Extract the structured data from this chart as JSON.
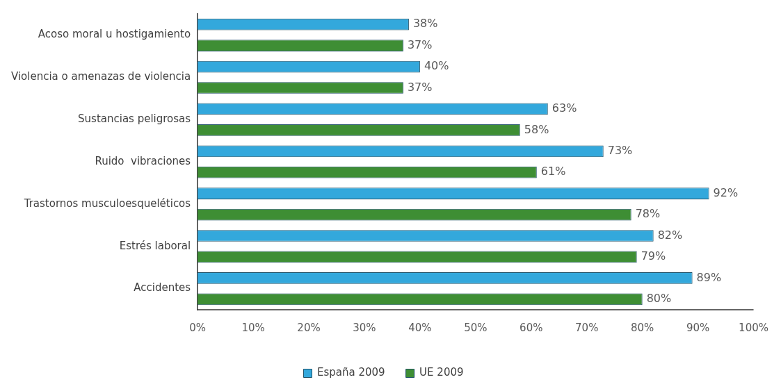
{
  "chart_data": {
    "type": "bar",
    "orientation": "horizontal",
    "categories": [
      "Acoso moral u hostigamiento",
      "Violencia o amenazas de violencia",
      "Sustancias peligrosas",
      "Ruido  vibraciones",
      "Trastornos musculoesqueléticos",
      "Estrés laboral",
      "Accidentes"
    ],
    "series": [
      {
        "name": "España 2009",
        "color": "#33a8dc",
        "values": [
          38,
          40,
          63,
          73,
          92,
          82,
          89
        ],
        "value_labels": [
          "38%",
          "40%",
          "63%",
          "73%",
          "92%",
          "82%",
          "89%"
        ]
      },
      {
        "name": "UE 2009",
        "color": "#3e8e34",
        "values": [
          37,
          37,
          58,
          61,
          78,
          79,
          80
        ],
        "value_labels": [
          "37%",
          "37%",
          "58%",
          "61%",
          "78%",
          "79%",
          "80%"
        ]
      }
    ],
    "xlim": [
      0,
      100
    ],
    "xticks": [
      {
        "value": 0,
        "label": "0%"
      },
      {
        "value": 10,
        "label": "10%"
      },
      {
        "value": 20,
        "label": "20%"
      },
      {
        "value": 30,
        "label": "30%"
      },
      {
        "value": 40,
        "label": "40%"
      },
      {
        "value": 50,
        "label": "50%"
      },
      {
        "value": 60,
        "label": "60%"
      },
      {
        "value": 70,
        "label": "70%"
      },
      {
        "value": 80,
        "label": "80%"
      },
      {
        "value": 90,
        "label": "90%"
      },
      {
        "value": 100,
        "label": "100%"
      }
    ],
    "grid": false,
    "legend": "bottom"
  }
}
